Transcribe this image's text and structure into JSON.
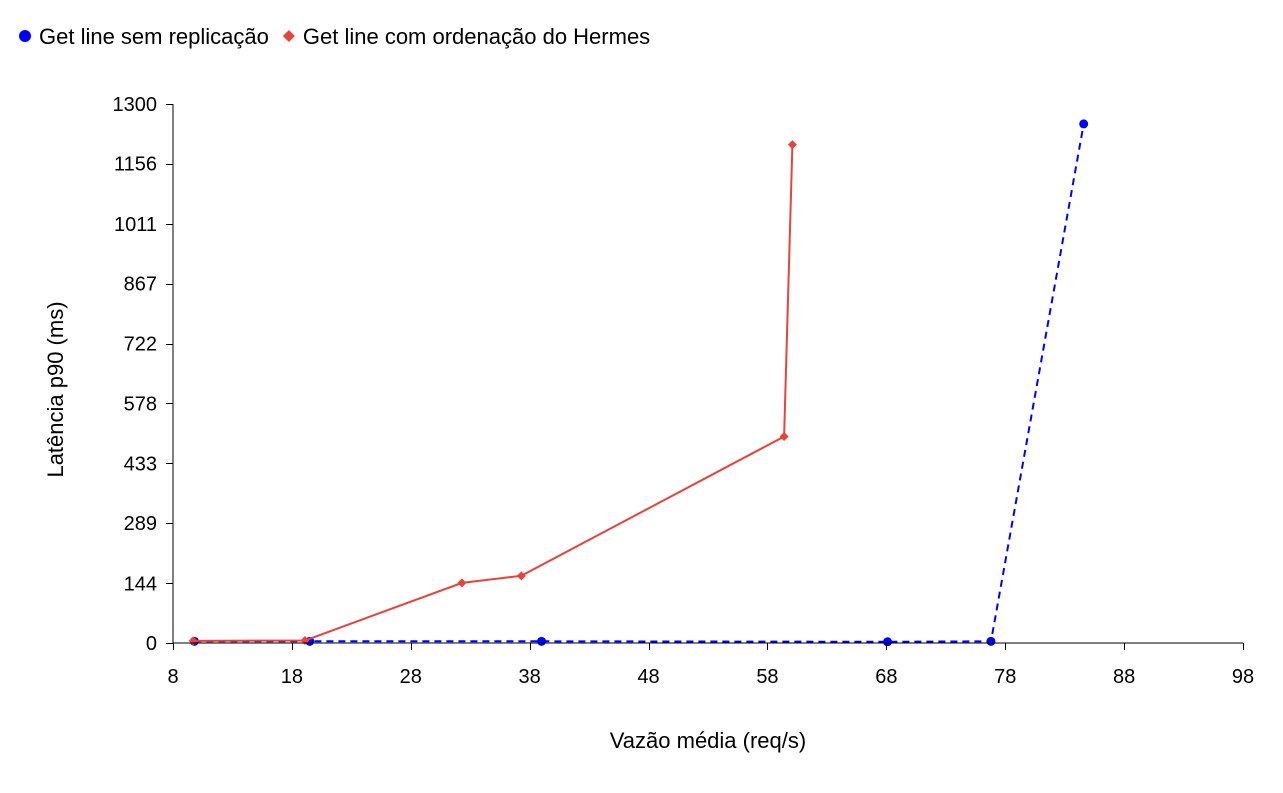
{
  "chart_data": {
    "type": "line",
    "title": "",
    "xlabel": "Vazão média (req/s)",
    "ylabel": "Latência p90 (ms)",
    "xlim": [
      8,
      98
    ],
    "ylim": [
      0,
      1300
    ],
    "x_ticks": [
      8,
      18,
      28,
      38,
      48,
      58,
      68,
      78,
      88,
      98
    ],
    "y_ticks": [
      0,
      144,
      289,
      433,
      578,
      722,
      867,
      1011,
      1156,
      1300
    ],
    "grid": false,
    "legend_position": "top-left",
    "series": [
      {
        "name": "Get line sem replicação",
        "color": "#0000ff",
        "marker": "circle",
        "line_style": "dashed",
        "x": [
          9.8,
          19.5,
          39.0,
          68.1,
          76.8,
          84.6
        ],
        "y": [
          4,
          4,
          4,
          3,
          4,
          1252
        ]
      },
      {
        "name": "Get line com ordenação do Hermes",
        "color": "#e8423a",
        "marker": "diamond",
        "line_style": "solid",
        "x": [
          9.7,
          19.1,
          32.3,
          37.3,
          59.4,
          60.1
        ],
        "y": [
          5,
          6,
          145,
          162,
          498,
          1202
        ]
      }
    ]
  }
}
